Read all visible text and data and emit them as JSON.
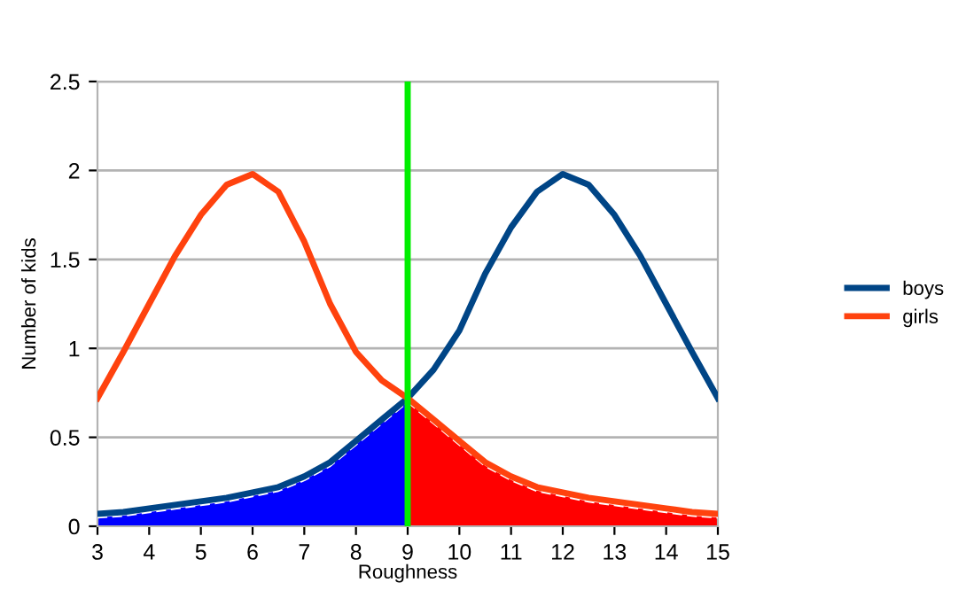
{
  "chart_data": {
    "type": "line",
    "xlabel": "Roughness",
    "ylabel": "Number of kids",
    "xlim": [
      3,
      15
    ],
    "xticks": [
      3,
      4,
      5,
      6,
      7,
      8,
      9,
      10,
      11,
      12,
      13,
      14,
      15
    ],
    "ylim": [
      0,
      2.5
    ],
    "yticks": [
      0,
      0.5,
      1,
      1.5,
      2,
      2.5
    ],
    "grid": "y",
    "legend": "right",
    "series": [
      {
        "type": "area",
        "color": "#0000ff",
        "line_style": "dashed",
        "x": [
          3,
          3.5,
          4,
          4.5,
          5,
          5.5,
          6,
          6.5,
          7,
          7.5,
          8,
          8.5,
          9
        ],
        "values": [
          0.05,
          0.06,
          0.08,
          0.1,
          0.12,
          0.14,
          0.17,
          0.2,
          0.26,
          0.34,
          0.46,
          0.58,
          0.7
        ]
      },
      {
        "type": "area",
        "color": "#ff0000",
        "line_style": "dashed",
        "x": [
          9,
          9.5,
          10,
          10.5,
          11,
          11.5,
          12,
          12.5,
          13,
          13.5,
          14,
          14.5,
          15
        ],
        "values": [
          0.7,
          0.58,
          0.46,
          0.34,
          0.26,
          0.2,
          0.17,
          0.14,
          0.12,
          0.1,
          0.08,
          0.06,
          0.05
        ]
      },
      {
        "name": "boys",
        "color": "#004586",
        "x": [
          3,
          3.5,
          4,
          4.5,
          5,
          5.5,
          6,
          6.5,
          7,
          7.5,
          8,
          8.5,
          9,
          9.5,
          10,
          10.5,
          11,
          11.5,
          12,
          12.5,
          13,
          13.5,
          14,
          14.5,
          15
        ],
        "values": [
          0.07,
          0.08,
          0.1,
          0.12,
          0.14,
          0.16,
          0.19,
          0.22,
          0.28,
          0.36,
          0.48,
          0.6,
          0.72,
          0.88,
          1.1,
          1.42,
          1.68,
          1.88,
          1.98,
          1.92,
          1.75,
          1.52,
          1.25,
          0.98,
          0.72
        ]
      },
      {
        "name": "girls",
        "color": "#ff420e",
        "x": [
          3,
          3.5,
          4,
          4.5,
          5,
          5.5,
          6,
          6.5,
          7,
          7.5,
          8,
          8.5,
          9,
          9.5,
          10,
          10.5,
          11,
          11.5,
          12,
          12.5,
          13,
          13.5,
          14,
          14.5,
          15
        ],
        "values": [
          0.72,
          0.98,
          1.25,
          1.52,
          1.75,
          1.92,
          1.98,
          1.88,
          1.6,
          1.25,
          0.98,
          0.82,
          0.72,
          0.6,
          0.48,
          0.36,
          0.28,
          0.22,
          0.19,
          0.16,
          0.14,
          0.12,
          0.1,
          0.08,
          0.07
        ]
      }
    ],
    "ref_lines": [
      {
        "axis": "x",
        "value": 9,
        "color": "#00ee00"
      }
    ]
  }
}
